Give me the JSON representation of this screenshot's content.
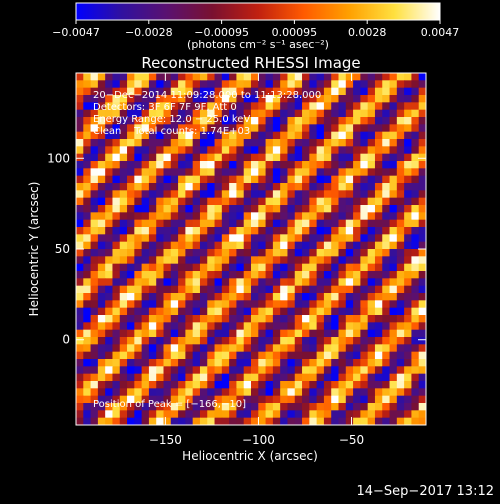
{
  "chart_data": {
    "type": "heatmap",
    "title": "Reconstructed RHESSI Image",
    "xlabel": "Heliocentric X (arcsec)",
    "ylabel": "Heliocentric Y (arcsec)",
    "xlim": [
      -198,
      -10
    ],
    "ylim": [
      -47,
      147
    ],
    "x_ticks": [
      {
        "value": -150,
        "label": "−150"
      },
      {
        "value": -100,
        "label": "−100"
      },
      {
        "value": -50,
        "label": "−50"
      }
    ],
    "y_ticks": [
      {
        "value": 0,
        "label": "0"
      },
      {
        "value": 50,
        "label": "50"
      },
      {
        "value": 100,
        "label": "100"
      }
    ],
    "colorbar": {
      "range": [
        -0.0047,
        0.0047
      ],
      "tick_labels": [
        "−0.0047",
        "−0.0028",
        "−0.00095",
        "0.00095",
        "0.0028",
        "0.0047"
      ],
      "unit_line": "(photons cm⁻² s⁻¹ asec⁻²)",
      "colors": [
        "#0000ff",
        "#3010a0",
        "#5a1070",
        "#7a1030",
        "#c02010",
        "#ff5a00",
        "#ffa000",
        "#ffe040",
        "#ffffff"
      ]
    },
    "grid": {
      "cols": 48,
      "rows": 48,
      "pattern": "diagonal stripes (fringe pattern)"
    },
    "annotations": {
      "line1": "20−Dec−2014 11:09:28.000 to 11:13:28.000",
      "line2": "Detectors: 3F 6F 7F 9F, Att 0",
      "line3": "Energy Range: 12.0 − 25.0 keV",
      "line4": "Clean    Total counts: 1.74E+03",
      "peak": "Position of Peak = [−166,−10]"
    },
    "timestamp": "14−Sep−2017 13:12"
  }
}
